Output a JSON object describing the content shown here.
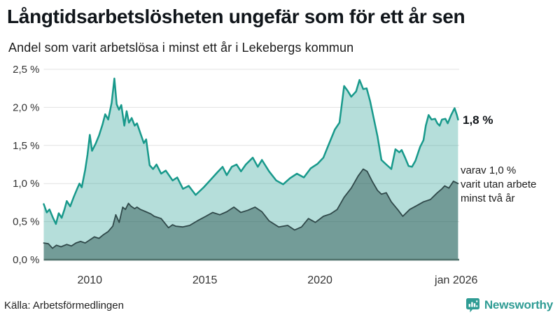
{
  "header": {
    "title": "Långtidsarbetslösheten ungefär som för ett år sen",
    "subtitle": "Andel som varit arbetslösa i minst ett år i Lekebergs kommun"
  },
  "annotations": {
    "latest_total": "1,8 %",
    "latest_two_year": "varav 1,0 %\nvarit utan arbete\nminst två år"
  },
  "footer": {
    "source": "Källa: Arbetsförmedlingen",
    "brand": "Newsworthy"
  },
  "colors": {
    "line_total": "#18998b",
    "fill_total": "rgba(24,153,139,0.32)",
    "line_two_year": "#30494a",
    "fill_two_year": "rgba(36,75,70,0.45)",
    "gridline": "#e2e2e2",
    "axis_line": "#4f716b",
    "tick_text": "#333333",
    "brand_teal": "#2f9c94"
  },
  "chart_data": {
    "type": "area",
    "title": "Långtidsarbetslösheten ungefär som för ett år sen",
    "subtitle": "Andel som varit arbetslösa i minst ett år i Lekebergs kommun",
    "xlabel": "",
    "ylabel": "",
    "grid": true,
    "legend_position": "right-annotations",
    "xlim": [
      2008.0,
      2026.05
    ],
    "ylim": [
      0,
      2.5
    ],
    "x_ticks": [
      {
        "label": "2010",
        "t": 2010.0
      },
      {
        "label": "2015",
        "t": 2015.0
      },
      {
        "label": "2020",
        "t": 2020.0
      },
      {
        "label": "jan 2026",
        "t": 2025.92
      }
    ],
    "y_ticks": [
      {
        "label": "0,0 %",
        "value": 0.0
      },
      {
        "label": "0,5 %",
        "value": 0.5
      },
      {
        "label": "1,0 %",
        "value": 1.0
      },
      {
        "label": "1,5 %",
        "value": 1.5
      },
      {
        "label": "2,0 %",
        "value": 2.0
      },
      {
        "label": "2,5 %",
        "value": 2.5
      }
    ],
    "series": [
      {
        "name": "Arbetslösa minst ett år",
        "latest_value_pct": 1.8,
        "points": [
          [
            2008.0,
            0.73
          ],
          [
            2008.13,
            0.62
          ],
          [
            2008.25,
            0.66
          ],
          [
            2008.4,
            0.55
          ],
          [
            2008.53,
            0.47
          ],
          [
            2008.65,
            0.61
          ],
          [
            2008.78,
            0.55
          ],
          [
            2008.9,
            0.66
          ],
          [
            2009.0,
            0.77
          ],
          [
            2009.15,
            0.7
          ],
          [
            2009.3,
            0.82
          ],
          [
            2009.45,
            0.93
          ],
          [
            2009.55,
            1.0
          ],
          [
            2009.65,
            0.95
          ],
          [
            2009.8,
            1.18
          ],
          [
            2009.9,
            1.38
          ],
          [
            2010.0,
            1.64
          ],
          [
            2010.1,
            1.43
          ],
          [
            2010.25,
            1.52
          ],
          [
            2010.4,
            1.63
          ],
          [
            2010.55,
            1.77
          ],
          [
            2010.67,
            1.91
          ],
          [
            2010.8,
            1.84
          ],
          [
            2010.95,
            2.06
          ],
          [
            2011.07,
            2.38
          ],
          [
            2011.17,
            2.04
          ],
          [
            2011.27,
            1.97
          ],
          [
            2011.37,
            2.03
          ],
          [
            2011.5,
            1.76
          ],
          [
            2011.6,
            1.95
          ],
          [
            2011.7,
            1.8
          ],
          [
            2011.82,
            1.86
          ],
          [
            2011.95,
            1.76
          ],
          [
            2012.05,
            1.79
          ],
          [
            2012.2,
            1.66
          ],
          [
            2012.35,
            1.53
          ],
          [
            2012.45,
            1.58
          ],
          [
            2012.6,
            1.24
          ],
          [
            2012.75,
            1.19
          ],
          [
            2012.9,
            1.25
          ],
          [
            2013.1,
            1.13
          ],
          [
            2013.3,
            1.17
          ],
          [
            2013.6,
            1.04
          ],
          [
            2013.8,
            1.08
          ],
          [
            2014.05,
            0.93
          ],
          [
            2014.3,
            0.97
          ],
          [
            2014.6,
            0.85
          ],
          [
            2014.95,
            0.95
          ],
          [
            2015.25,
            1.05
          ],
          [
            2015.55,
            1.15
          ],
          [
            2015.77,
            1.22
          ],
          [
            2015.95,
            1.11
          ],
          [
            2016.17,
            1.22
          ],
          [
            2016.38,
            1.25
          ],
          [
            2016.57,
            1.16
          ],
          [
            2016.78,
            1.25
          ],
          [
            2017.08,
            1.34
          ],
          [
            2017.3,
            1.22
          ],
          [
            2017.48,
            1.31
          ],
          [
            2017.79,
            1.16
          ],
          [
            2018.1,
            1.04
          ],
          [
            2018.4,
            0.99
          ],
          [
            2018.7,
            1.07
          ],
          [
            2019.0,
            1.13
          ],
          [
            2019.3,
            1.08
          ],
          [
            2019.6,
            1.2
          ],
          [
            2019.9,
            1.26
          ],
          [
            2020.15,
            1.34
          ],
          [
            2020.35,
            1.49
          ],
          [
            2020.65,
            1.71
          ],
          [
            2020.85,
            1.8
          ],
          [
            2021.05,
            2.28
          ],
          [
            2021.2,
            2.22
          ],
          [
            2021.36,
            2.14
          ],
          [
            2021.57,
            2.21
          ],
          [
            2021.72,
            2.36
          ],
          [
            2021.88,
            2.24
          ],
          [
            2022.03,
            2.25
          ],
          [
            2022.18,
            2.08
          ],
          [
            2022.5,
            1.62
          ],
          [
            2022.67,
            1.31
          ],
          [
            2022.88,
            1.25
          ],
          [
            2023.1,
            1.19
          ],
          [
            2023.28,
            1.45
          ],
          [
            2023.45,
            1.41
          ],
          [
            2023.55,
            1.44
          ],
          [
            2023.7,
            1.34
          ],
          [
            2023.85,
            1.23
          ],
          [
            2024.0,
            1.22
          ],
          [
            2024.15,
            1.3
          ],
          [
            2024.35,
            1.48
          ],
          [
            2024.5,
            1.57
          ],
          [
            2024.6,
            1.76
          ],
          [
            2024.72,
            1.9
          ],
          [
            2024.85,
            1.84
          ],
          [
            2025.0,
            1.85
          ],
          [
            2025.1,
            1.79
          ],
          [
            2025.2,
            1.76
          ],
          [
            2025.3,
            1.84
          ],
          [
            2025.45,
            1.85
          ],
          [
            2025.55,
            1.79
          ],
          [
            2025.7,
            1.9
          ],
          [
            2025.85,
            1.99
          ],
          [
            2025.95,
            1.9
          ],
          [
            2026.0,
            1.84
          ]
        ]
      },
      {
        "name": "Varav utan arbete minst två år",
        "latest_value_pct": 1.0,
        "points": [
          [
            2008.0,
            0.22
          ],
          [
            2008.2,
            0.21
          ],
          [
            2008.38,
            0.15
          ],
          [
            2008.55,
            0.19
          ],
          [
            2008.75,
            0.17
          ],
          [
            2009.0,
            0.2
          ],
          [
            2009.2,
            0.18
          ],
          [
            2009.4,
            0.22
          ],
          [
            2009.6,
            0.24
          ],
          [
            2009.8,
            0.22
          ],
          [
            2010.0,
            0.26
          ],
          [
            2010.2,
            0.3
          ],
          [
            2010.4,
            0.28
          ],
          [
            2010.6,
            0.33
          ],
          [
            2010.8,
            0.37
          ],
          [
            2011.0,
            0.44
          ],
          [
            2011.13,
            0.59
          ],
          [
            2011.28,
            0.49
          ],
          [
            2011.43,
            0.69
          ],
          [
            2011.55,
            0.66
          ],
          [
            2011.68,
            0.74
          ],
          [
            2011.8,
            0.7
          ],
          [
            2011.95,
            0.67
          ],
          [
            2012.05,
            0.69
          ],
          [
            2012.2,
            0.66
          ],
          [
            2012.44,
            0.63
          ],
          [
            2012.66,
            0.6
          ],
          [
            2012.8,
            0.57
          ],
          [
            2013.1,
            0.54
          ],
          [
            2013.42,
            0.42
          ],
          [
            2013.6,
            0.46
          ],
          [
            2013.73,
            0.44
          ],
          [
            2014.03,
            0.43
          ],
          [
            2014.34,
            0.45
          ],
          [
            2014.73,
            0.52
          ],
          [
            2015.04,
            0.57
          ],
          [
            2015.34,
            0.62
          ],
          [
            2015.65,
            0.59
          ],
          [
            2015.95,
            0.63
          ],
          [
            2016.26,
            0.69
          ],
          [
            2016.56,
            0.62
          ],
          [
            2016.87,
            0.65
          ],
          [
            2017.18,
            0.69
          ],
          [
            2017.48,
            0.63
          ],
          [
            2017.79,
            0.51
          ],
          [
            2018.21,
            0.43
          ],
          [
            2018.6,
            0.45
          ],
          [
            2018.9,
            0.39
          ],
          [
            2019.2,
            0.43
          ],
          [
            2019.5,
            0.54
          ],
          [
            2019.8,
            0.49
          ],
          [
            2020.15,
            0.57
          ],
          [
            2020.45,
            0.6
          ],
          [
            2020.75,
            0.66
          ],
          [
            2021.05,
            0.82
          ],
          [
            2021.36,
            0.94
          ],
          [
            2021.66,
            1.1
          ],
          [
            2021.88,
            1.19
          ],
          [
            2022.05,
            1.16
          ],
          [
            2022.27,
            1.03
          ],
          [
            2022.5,
            0.91
          ],
          [
            2022.67,
            0.86
          ],
          [
            2022.88,
            0.88
          ],
          [
            2023.1,
            0.76
          ],
          [
            2023.4,
            0.65
          ],
          [
            2023.6,
            0.57
          ],
          [
            2023.9,
            0.66
          ],
          [
            2024.2,
            0.71
          ],
          [
            2024.5,
            0.76
          ],
          [
            2024.8,
            0.79
          ],
          [
            2025.1,
            0.88
          ],
          [
            2025.3,
            0.93
          ],
          [
            2025.42,
            0.97
          ],
          [
            2025.6,
            0.94
          ],
          [
            2025.8,
            1.03
          ],
          [
            2026.0,
            1.0
          ]
        ]
      }
    ]
  }
}
